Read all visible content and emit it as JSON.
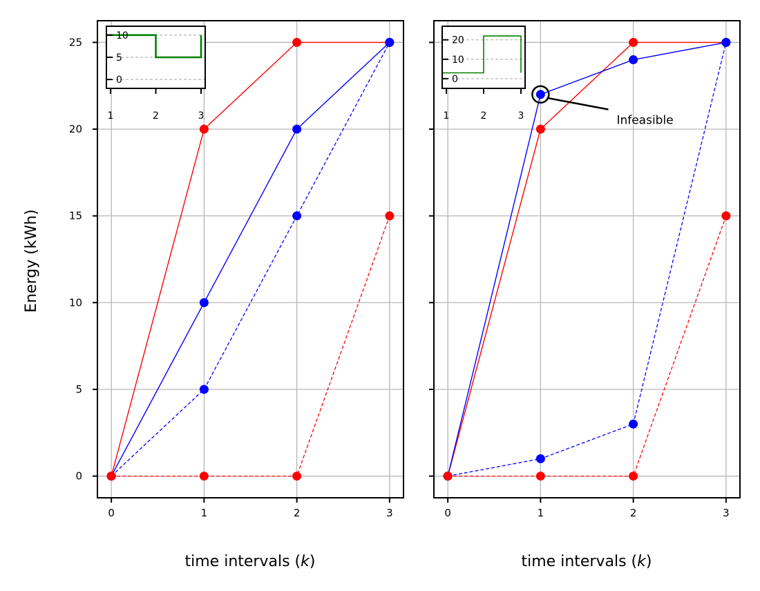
{
  "colors": {
    "red": "#ff0000",
    "blue": "#0000ff",
    "green": "#008000",
    "grid": "#b0b0b0",
    "axes": "#000000"
  },
  "shared": {
    "ylabel": "Energy (kWh)",
    "xlabel_prefix": "time intervals (",
    "xlabel_var": "k",
    "xlabel_suffix": ")"
  },
  "chart_data": [
    {
      "type": "line",
      "xlabel": "time intervals (k)",
      "ylabel": "Energy (kWh)",
      "xlim": [
        -0.15,
        3.15
      ],
      "ylim": [
        -1.25,
        26.25
      ],
      "x": [
        0,
        1,
        2,
        3
      ],
      "xticks": [
        "0",
        "1",
        "2",
        "3"
      ],
      "yticks": [
        "0",
        "5",
        "10",
        "15",
        "20",
        "25"
      ],
      "grid": true,
      "series": [
        {
          "color": "red",
          "style": "solid",
          "values": [
            0,
            20,
            25,
            25
          ]
        },
        {
          "color": "blue",
          "style": "solid",
          "values": [
            0,
            10,
            20,
            25
          ]
        },
        {
          "color": "blue",
          "style": "dashed",
          "values": [
            0,
            5,
            15,
            25
          ]
        },
        {
          "color": "red",
          "style": "dashed",
          "values": [
            0,
            0,
            0,
            15
          ]
        }
      ],
      "inset": {
        "type": "step",
        "color": "green",
        "x": [
          1,
          2,
          3
        ],
        "values": [
          10,
          5,
          10
        ],
        "xlim": [
          1,
          3
        ],
        "ylim": [
          -2,
          12
        ],
        "xticks": [
          "1",
          "2",
          "3"
        ],
        "yticks": [
          "0",
          "5",
          "10"
        ]
      }
    },
    {
      "type": "line",
      "xlabel": "time intervals (k)",
      "ylabel": "",
      "xlim": [
        -0.15,
        3.15
      ],
      "ylim": [
        -1.25,
        26.25
      ],
      "x": [
        0,
        1,
        2,
        3
      ],
      "xticks": [
        "0",
        "1",
        "2",
        "3"
      ],
      "yticks": [],
      "grid": true,
      "series": [
        {
          "color": "red",
          "style": "solid",
          "values": [
            0,
            20,
            25,
            25
          ]
        },
        {
          "color": "blue",
          "style": "solid",
          "values": [
            0,
            22,
            24,
            25
          ]
        },
        {
          "color": "blue",
          "style": "dashed",
          "values": [
            0,
            1,
            3,
            25
          ]
        },
        {
          "color": "red",
          "style": "dashed",
          "values": [
            0,
            0,
            0,
            15
          ]
        }
      ],
      "annotation": {
        "text": "Infeasible",
        "point": [
          1,
          22
        ],
        "text_pos": [
          1.82,
          20.3
        ]
      },
      "inset": {
        "type": "step",
        "color": "green",
        "x": [
          1,
          2,
          3
        ],
        "values": [
          3,
          22,
          3
        ],
        "xlim": [
          1,
          3
        ],
        "ylim": [
          -5,
          27
        ],
        "xticks": [
          "1",
          "2",
          "3"
        ],
        "yticks": [
          "0",
          "10",
          "20"
        ]
      }
    }
  ]
}
